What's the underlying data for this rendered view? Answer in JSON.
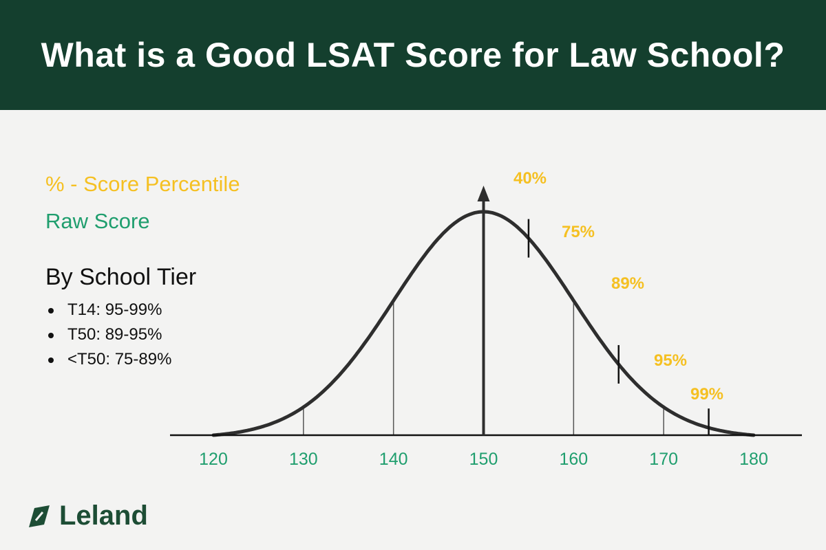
{
  "title": "What is a Good LSAT Score for Law School?",
  "colors": {
    "header_bg": "#143f2e",
    "percentile": "#f5c022",
    "raw_score": "#1f9e6e",
    "curve": "#2e2e2e",
    "brand": "#1d4d35"
  },
  "legend": {
    "percentile_label": "% - Score Percentile",
    "raw_label": "Raw Score"
  },
  "tiers": {
    "heading": "By School Tier",
    "items": [
      "T14: 95-99%",
      "T50: 89-95%",
      "<T50: 75-89%"
    ]
  },
  "brand": {
    "name": "Leland",
    "icon": "leaf-icon"
  },
  "chart_data": {
    "type": "area",
    "xlim": [
      120,
      180
    ],
    "mean": 150,
    "sd": 10,
    "xticks": [
      120,
      130,
      140,
      150,
      160,
      170,
      180
    ],
    "gridlines": [
      130,
      140,
      160,
      170
    ],
    "percentile_markers": [
      {
        "score": 155,
        "label": "40%"
      },
      {
        "score": 160,
        "label": "75%"
      },
      {
        "score": 165,
        "label": "89%"
      },
      {
        "score": 170,
        "label": "95%"
      },
      {
        "score": 175,
        "label": "99%"
      }
    ]
  }
}
